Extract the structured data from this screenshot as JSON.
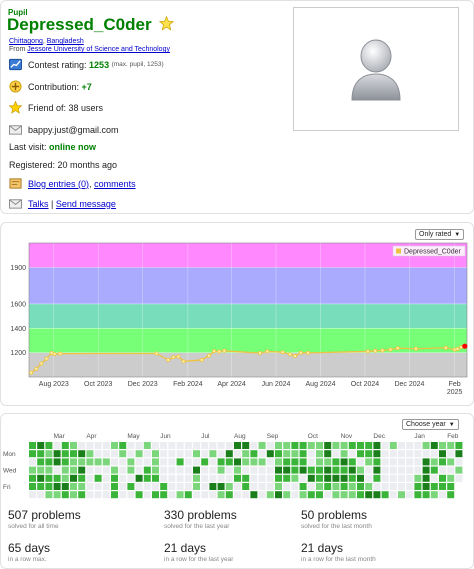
{
  "profile": {
    "rank": "Pupil",
    "handle": "Depressed_C0der",
    "city": "Chittagong",
    "country": "Bangladesh",
    "from_label": "From",
    "organization": "Jessore University of Science and Technology",
    "rating_label": "Contest rating:",
    "rating": "1253",
    "rating_max": "(max. pupil, 1253)",
    "contribution_label": "Contribution:",
    "contribution": "+7",
    "friend_label": "Friend of: 38 users",
    "email": "bappy.just@gmail.com",
    "last_visit_label": "Last visit:",
    "last_visit": "online now",
    "registered": "Registered: 20 months ago",
    "blog_label": "Blog entries (0)",
    "comments_label": "comments",
    "talks_label": "Talks",
    "send_message_label": "Send message",
    "separator_comma": ",",
    "separator_bar": "|"
  },
  "colors": {
    "handle": "#008000",
    "link": "#0000cc",
    "line": "#edc240"
  },
  "rating_chart": {
    "filter": "Only rated",
    "chart_data": {
      "type": "line",
      "series": [
        {
          "name": "Depressed_C0der",
          "points": [
            [
              "2023-07-01",
              1035
            ],
            [
              "2023-07-08",
              1067
            ],
            [
              "2023-07-15",
              1110
            ],
            [
              "2023-07-22",
              1150
            ],
            [
              "2023-07-29",
              1197
            ],
            [
              "2023-08-02",
              1188
            ],
            [
              "2023-08-10",
              1192
            ],
            [
              "2023-12-20",
              1193
            ],
            [
              "2024-01-05",
              1140
            ],
            [
              "2024-01-12",
              1162
            ],
            [
              "2024-01-19",
              1168
            ],
            [
              "2024-01-26",
              1128
            ],
            [
              "2024-02-20",
              1140
            ],
            [
              "2024-03-01",
              1175
            ],
            [
              "2024-03-08",
              1212
            ],
            [
              "2024-03-15",
              1208
            ],
            [
              "2024-03-22",
              1215
            ],
            [
              "2024-05-10",
              1196
            ],
            [
              "2024-05-20",
              1210
            ],
            [
              "2024-06-10",
              1203
            ],
            [
              "2024-06-20",
              1186
            ],
            [
              "2024-06-27",
              1172
            ],
            [
              "2024-07-05",
              1199
            ],
            [
              "2024-07-15",
              1198
            ],
            [
              "2024-10-05",
              1210
            ],
            [
              "2024-10-15",
              1215
            ],
            [
              "2024-10-25",
              1218
            ],
            [
              "2024-11-05",
              1225
            ],
            [
              "2024-11-15",
              1237
            ],
            [
              "2024-12-10",
              1232
            ],
            [
              "2025-01-20",
              1240
            ],
            [
              "2025-02-01",
              1225
            ],
            [
              "2025-02-05",
              1230
            ],
            [
              "2025-02-10",
              1245
            ],
            [
              "2025-02-15",
              1253
            ]
          ]
        }
      ],
      "y_ticks": [
        "1200",
        "1400",
        "1600",
        "1900"
      ],
      "x_ticks": [
        "Aug 2023",
        "Oct 2023",
        "Dec 2023",
        "Feb 2024",
        "Apr 2024",
        "Jun 2024",
        "Aug 2024",
        "Oct 2024",
        "Dec 2024",
        "Feb"
      ],
      "x_tick_extra": "2025",
      "bands": [
        {
          "from": 0,
          "to": 1200,
          "color": "#cccccc"
        },
        {
          "from": 1200,
          "to": 1400,
          "color": "#77ff77"
        },
        {
          "from": 1400,
          "to": 1600,
          "color": "#77ddbb"
        },
        {
          "from": 1600,
          "to": 1900,
          "color": "#aaaaff"
        },
        {
          "from": 1900,
          "to": 2100,
          "color": "#ff88ff"
        }
      ]
    }
  },
  "activity": {
    "year_filter": "Choose year",
    "months": [
      "Mar",
      "Apr",
      "May",
      "Jun",
      "Jul",
      "Aug",
      "Sep",
      "Oct",
      "Nov",
      "Dec",
      "Jan",
      "Feb"
    ],
    "days": [
      "Mon",
      "Wed",
      "Fri"
    ],
    "levels": [
      "#ebedf0",
      "#c6e9c6",
      "#7bd67b",
      "#3ab53a",
      "#1a7f1a"
    ],
    "stats": [
      {
        "value": "507 problems",
        "label": "solved for all time"
      },
      {
        "value": "330 problems",
        "label": "solved for the last year"
      },
      {
        "value": "50 problems",
        "label": "solved for the last month"
      },
      {
        "value": "65 days",
        "label": "in a row max."
      },
      {
        "value": "21 days",
        "label": "in a row for the last year"
      },
      {
        "value": "21 days",
        "label": "in a row for the last month"
      }
    ]
  }
}
